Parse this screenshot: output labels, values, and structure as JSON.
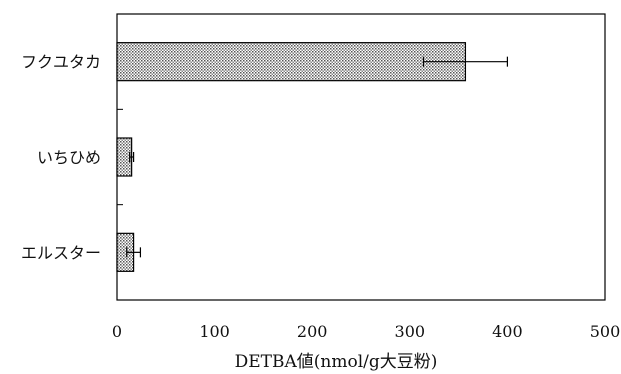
{
  "chart_data": {
    "type": "bar",
    "orientation": "horizontal",
    "categories": [
      "フクユタカ",
      "いちひめ",
      "エルスター"
    ],
    "values": [
      357,
      15,
      17
    ],
    "errors": [
      43,
      2,
      7
    ],
    "xlabel": "DETBA値(nmol/g大豆粉)",
    "ylabel": "",
    "xlim": [
      0,
      500
    ],
    "xticks": [
      0,
      100,
      200,
      300,
      400,
      500
    ],
    "xtick_labels": [
      "0",
      "100",
      "200",
      "300",
      "400",
      "500"
    ],
    "grid": false,
    "bar_fill": "dotted-gray",
    "colors": {
      "bar": "#cfcfcf",
      "axis": "#000000"
    }
  }
}
